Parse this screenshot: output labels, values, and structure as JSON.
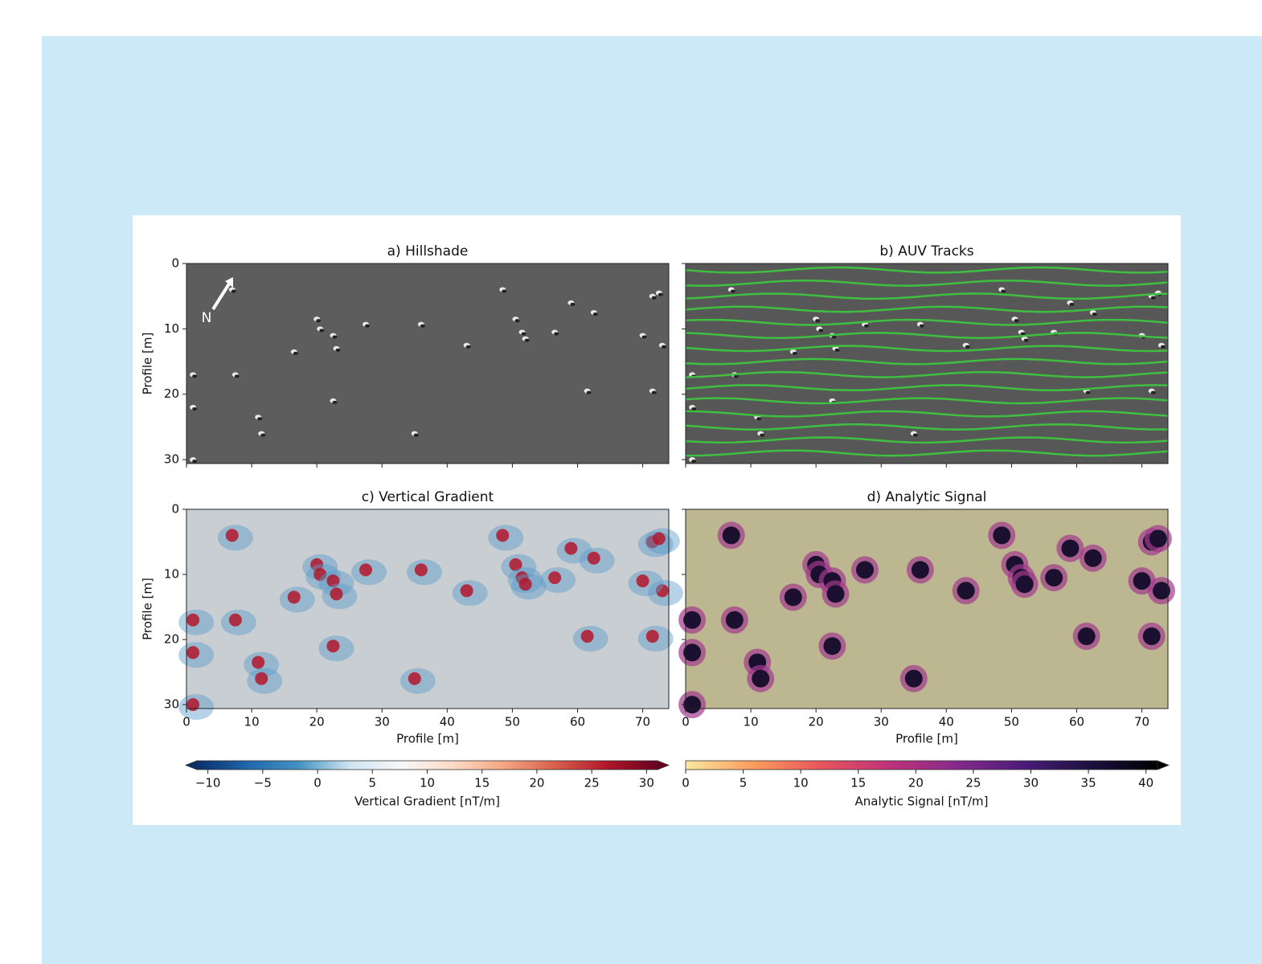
{
  "chart_data": [
    {
      "type": "image",
      "title": "a) Hillshade",
      "annotation": "N",
      "style": "hillshade",
      "ylabel": "Profile [m]",
      "xlim": [
        0,
        74
      ],
      "ylim": [
        30.6,
        0
      ],
      "xticks": [
        0,
        10,
        20,
        30,
        40,
        50,
        60,
        70
      ],
      "yticks": [
        0,
        10,
        20,
        30
      ],
      "show_xtick_labels": false,
      "show_ytick_labels": true
    },
    {
      "type": "image",
      "title": "b) AUV Tracks",
      "style": "tracks",
      "track_color": "#3fbf3f",
      "xlim": [
        0,
        74
      ],
      "ylim": [
        30.6,
        0
      ],
      "xticks": [
        0,
        10,
        20,
        30,
        40,
        50,
        60,
        70
      ],
      "yticks": [
        0,
        10,
        20,
        30
      ],
      "show_xtick_labels": false,
      "show_ytick_labels": false
    },
    {
      "type": "image",
      "title": "c) Vertical Gradient",
      "style": "gradient",
      "xlabel": "Profile [m]",
      "ylabel": "Profile [m]",
      "xlim": [
        0,
        74
      ],
      "ylim": [
        30.6,
        0
      ],
      "xticks": [
        0,
        10,
        20,
        30,
        40,
        50,
        60,
        70
      ],
      "yticks": [
        0,
        10,
        20,
        30
      ],
      "show_xtick_labels": true,
      "show_ytick_labels": true
    },
    {
      "type": "image",
      "title": "d) Analytic Signal",
      "style": "signal",
      "xlabel": "Profile [m]",
      "xlim": [
        0,
        74
      ],
      "ylim": [
        30.6,
        0
      ],
      "xticks": [
        0,
        10,
        20,
        30,
        40,
        50,
        60,
        70
      ],
      "yticks": [
        0,
        10,
        20,
        30
      ],
      "show_xtick_labels": true,
      "show_ytick_labels": false
    },
    {
      "type": "colorbar",
      "label": "Vertical Gradient [nT/m]",
      "xlim": [
        -11,
        31
      ],
      "xticks": [
        {
          "value": -10,
          "label": "−10"
        },
        {
          "value": -5,
          "label": "−5"
        },
        0,
        5,
        10,
        15,
        20,
        25,
        30
      ],
      "colors": [
        "#08306b",
        "#2166ac",
        "#4393c3",
        "#d1e5f0",
        "#f7f7f7",
        "#fddbc7",
        "#f4a582",
        "#d6604d",
        "#b2182b",
        "#67001f"
      ]
    },
    {
      "type": "colorbar",
      "label": "Analytic Signal [nT/m]",
      "xlim": [
        0,
        41
      ],
      "xticks": [
        0,
        5,
        10,
        15,
        20,
        25,
        30,
        35,
        40
      ],
      "colors": [
        "#fbe8a0",
        "#fb9b5c",
        "#e8555c",
        "#c0327a",
        "#872a8a",
        "#4c1c7a",
        "#1b1040",
        "#000000"
      ]
    }
  ]
}
